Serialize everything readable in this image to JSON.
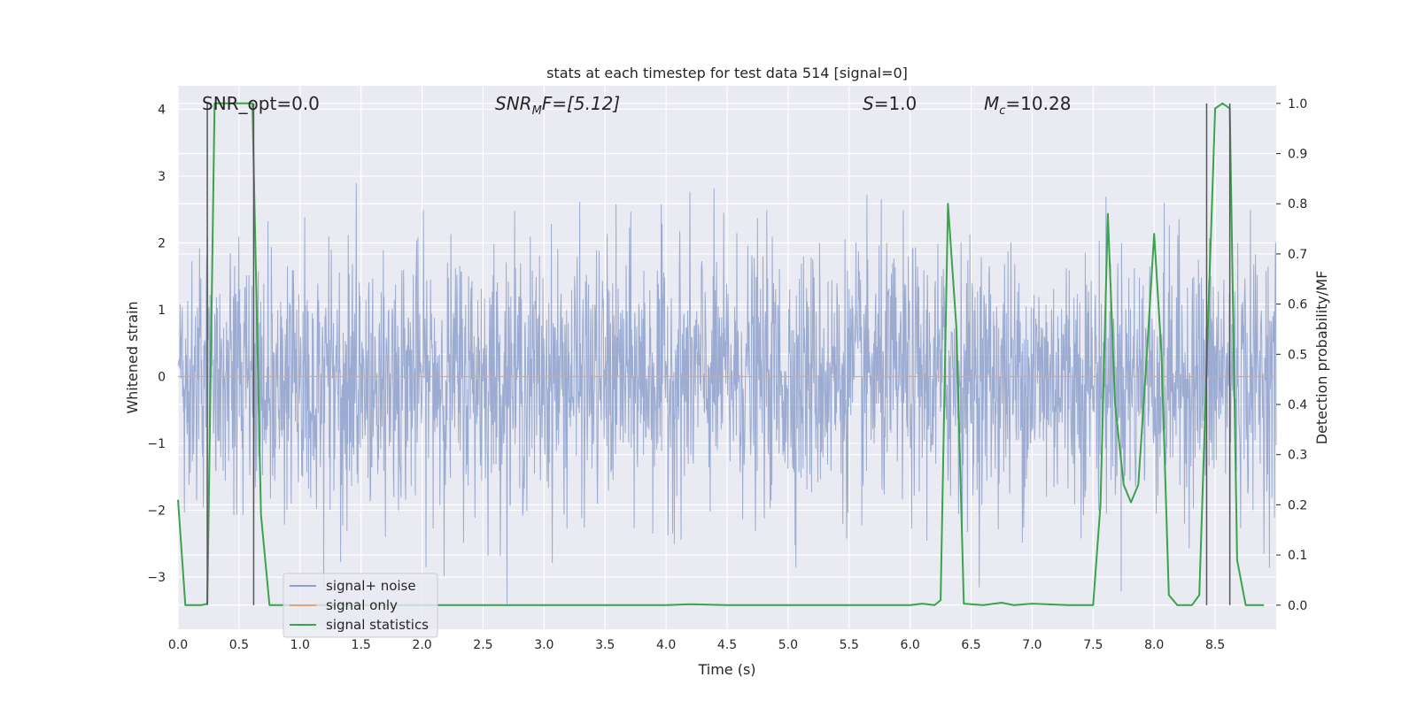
{
  "chart_data": {
    "type": "line",
    "title": "stats at each timestep for test data 514 [signal=0]",
    "xlabel": "Time (s)",
    "ylabel": "Whitened strain",
    "y2label": "Detection probability/MF",
    "xlim": [
      0.0,
      9.0
    ],
    "ylim": [
      -3.78,
      4.35
    ],
    "y2lim": [
      -0.048,
      1.035
    ],
    "xticks": [
      "0.0",
      "0.5",
      "1.0",
      "1.5",
      "2.0",
      "2.5",
      "3.0",
      "3.5",
      "4.0",
      "4.5",
      "5.0",
      "5.5",
      "6.0",
      "6.5",
      "7.0",
      "7.5",
      "8.0",
      "8.5"
    ],
    "yticks": [
      "−3",
      "−2",
      "−1",
      "0",
      "1",
      "2",
      "3",
      "4"
    ],
    "y2ticks": [
      "0.0",
      "0.1",
      "0.2",
      "0.3",
      "0.4",
      "0.5",
      "0.6",
      "0.7",
      "0.8",
      "0.9",
      "1.0"
    ],
    "grid": true,
    "legend_position": "lower-left",
    "annotations": {
      "snr_opt": "SNR_opt=0.0",
      "snr_mf_main": "SNR",
      "snr_mf_sub": "M",
      "snr_mf_rest": "F=[5.12]",
      "s_main": "S",
      "s_rest": "=1.0",
      "mc_main": "M",
      "mc_sub": "c",
      "mc_rest": "=10.28"
    },
    "series": [
      {
        "name": "signal+ noise",
        "color": "#8da0cb",
        "axis": "left",
        "note": "dense whitened noise, sampled at 2048 Hz, amplitude roughly within [-3.5, 4]"
      },
      {
        "name": "signal only",
        "color": "#e5a27d",
        "axis": "left",
        "x": [
          0.0,
          9.0
        ],
        "y": [
          0.0,
          0.0
        ]
      },
      {
        "name": "signal statistics",
        "color": "#3ba34b",
        "axis": "right",
        "x": [
          0.0,
          0.06,
          0.19,
          0.24,
          0.3,
          0.36,
          0.5,
          0.61,
          0.68,
          0.75,
          0.8,
          2.0,
          3.0,
          4.0,
          4.2,
          4.5,
          5.0,
          5.5,
          6.0,
          6.1,
          6.2,
          6.25,
          6.31,
          6.38,
          6.44,
          6.6,
          6.75,
          6.85,
          7.0,
          7.3,
          7.5,
          7.56,
          7.62,
          7.68,
          7.75,
          7.81,
          7.87,
          7.94,
          8.0,
          8.06,
          8.12,
          8.19,
          8.25,
          8.31,
          8.37,
          8.44,
          8.5,
          8.56,
          8.62,
          8.68,
          8.75,
          8.9
        ],
        "y": [
          0.21,
          0.0,
          0.0,
          0.003,
          1.0,
          1.0,
          1.0,
          1.0,
          0.18,
          0.0,
          0.0,
          0.0,
          0.0,
          0.0,
          0.002,
          0.0,
          0.0,
          0.0,
          0.0,
          0.003,
          0.0,
          0.01,
          0.8,
          0.55,
          0.003,
          0.0,
          0.005,
          0.0,
          0.003,
          0.0,
          0.0,
          0.2,
          0.78,
          0.4,
          0.24,
          0.205,
          0.24,
          0.5,
          0.74,
          0.5,
          0.02,
          0.0,
          0.0,
          0.0,
          0.02,
          0.55,
          0.99,
          1.0,
          0.99,
          0.09,
          0.0,
          0.0
        ]
      }
    ],
    "vertical_markers": [
      0.24,
      0.62,
      8.43,
      8.62
    ],
    "marker_color": "#555555"
  }
}
